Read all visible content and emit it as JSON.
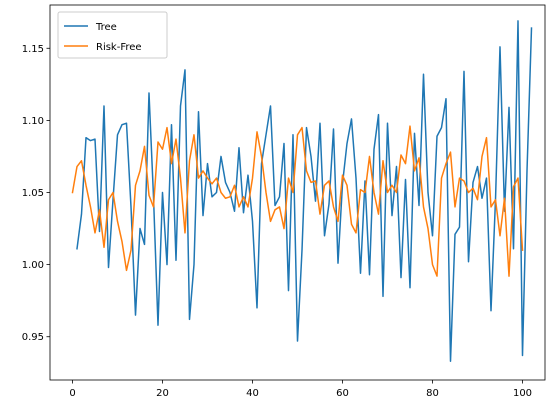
{
  "chart_data": {
    "type": "line",
    "title": "",
    "xlabel": "",
    "ylabel": "",
    "xlim": [
      -5,
      105
    ],
    "ylim": [
      0.92,
      1.18
    ],
    "xticks": [
      0,
      20,
      40,
      60,
      80,
      100
    ],
    "xtick_labels": [
      "0",
      "20",
      "40",
      "60",
      "80",
      "100"
    ],
    "yticks": [
      0.95,
      1.0,
      1.05,
      1.1,
      1.15
    ],
    "ytick_labels": [
      "0.95",
      "1.00",
      "1.05",
      "1.10",
      "1.15"
    ],
    "grid": false,
    "legend_position": "top-left",
    "series": [
      {
        "name": "Tree",
        "color": "#1f77b4",
        "x_start": 1,
        "values": [
          1.011,
          1.035,
          1.088,
          1.086,
          1.087,
          1.023,
          1.11,
          0.998,
          1.045,
          1.09,
          1.097,
          1.098,
          1.04,
          0.965,
          1.025,
          1.014,
          1.119,
          1.047,
          0.958,
          1.05,
          1.0,
          1.097,
          1.003,
          1.11,
          1.135,
          0.962,
          1.0,
          1.106,
          1.034,
          1.07,
          1.047,
          1.05,
          1.075,
          1.057,
          1.05,
          1.037,
          1.081,
          1.036,
          1.062,
          1.03,
          0.97,
          1.07,
          1.09,
          1.11,
          1.041,
          1.047,
          1.084,
          0.982,
          1.09,
          0.947,
          1.01,
          1.095,
          1.075,
          1.044,
          1.098,
          1.02,
          1.042,
          1.094,
          1.001,
          1.056,
          1.084,
          1.101,
          1.06,
          0.994,
          1.058,
          0.993,
          1.08,
          1.104,
          0.978,
          1.098,
          1.034,
          1.068,
          0.991,
          1.059,
          0.984,
          1.091,
          1.041,
          1.132,
          1.05,
          1.02,
          1.089,
          1.095,
          1.115,
          0.933,
          1.021,
          1.026,
          1.134,
          1.002,
          1.057,
          1.068,
          1.046,
          1.06,
          0.968,
          1.045,
          1.151,
          1.037,
          1.109,
          1.011,
          1.169,
          0.937,
          1.065,
          1.164
        ]
      },
      {
        "name": "Risk-Free",
        "color": "#ff7f0e",
        "x_start": 0,
        "values": [
          1.05,
          1.068,
          1.072,
          1.055,
          1.04,
          1.022,
          1.038,
          1.012,
          1.045,
          1.05,
          1.03,
          1.016,
          0.996,
          1.01,
          1.055,
          1.065,
          1.082,
          1.048,
          1.04,
          1.085,
          1.08,
          1.095,
          1.07,
          1.087,
          1.06,
          1.022,
          1.072,
          1.09,
          1.06,
          1.065,
          1.06,
          1.056,
          1.06,
          1.05,
          1.046,
          1.047,
          1.055,
          1.04,
          1.047,
          1.04,
          1.06,
          1.092,
          1.075,
          1.05,
          1.03,
          1.038,
          1.04,
          1.025,
          1.06,
          1.05,
          1.09,
          1.095,
          1.065,
          1.057,
          1.058,
          1.035,
          1.055,
          1.058,
          1.04,
          1.03,
          1.062,
          1.055,
          1.028,
          1.022,
          1.052,
          1.05,
          1.075,
          1.05,
          1.035,
          1.072,
          1.05,
          1.055,
          1.05,
          1.076,
          1.07,
          1.096,
          1.065,
          1.074,
          1.04,
          1.025,
          1.0,
          0.992,
          1.06,
          1.07,
          1.078,
          1.04,
          1.06,
          1.058,
          1.05,
          1.053,
          1.045,
          1.075,
          1.088,
          1.04,
          1.045,
          1.02,
          1.046,
          0.992,
          1.054,
          1.06,
          1.01
        ]
      }
    ]
  }
}
